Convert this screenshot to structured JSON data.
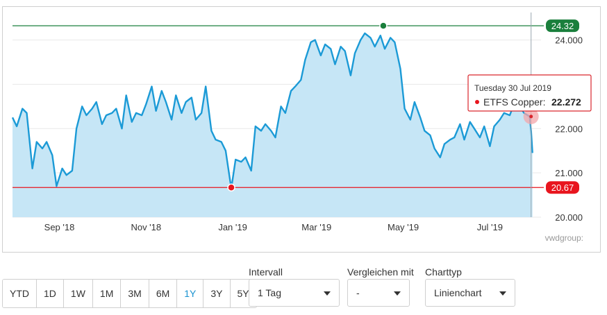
{
  "chart_data": {
    "type": "area",
    "series": [
      {
        "name": "ETFS Copper",
        "x": [
          "2018-07-30",
          "2018-08-02",
          "2018-08-06",
          "2018-08-09",
          "2018-08-13",
          "2018-08-16",
          "2018-08-20",
          "2018-08-23",
          "2018-08-27",
          "2018-08-30",
          "2018-09-03",
          "2018-09-06",
          "2018-09-10",
          "2018-09-13",
          "2018-09-17",
          "2018-09-20",
          "2018-09-24",
          "2018-09-27",
          "2018-10-01",
          "2018-10-04",
          "2018-10-08",
          "2018-10-11",
          "2018-10-15",
          "2018-10-18",
          "2018-10-22",
          "2018-10-25",
          "2018-10-29",
          "2018-11-01",
          "2018-11-05",
          "2018-11-08",
          "2018-11-12",
          "2018-11-15",
          "2018-11-19",
          "2018-11-22",
          "2018-11-26",
          "2018-11-29",
          "2018-12-03",
          "2018-12-06",
          "2018-12-10",
          "2018-12-13",
          "2018-12-17",
          "2018-12-20",
          "2018-12-24",
          "2018-12-27",
          "2018-12-31",
          "2019-01-03",
          "2019-01-07",
          "2019-01-10",
          "2019-01-14",
          "2019-01-17",
          "2019-01-21",
          "2019-01-24",
          "2019-01-28",
          "2019-01-31",
          "2019-02-04",
          "2019-02-07",
          "2019-02-11",
          "2019-02-14",
          "2019-02-18",
          "2019-02-21",
          "2019-02-25",
          "2019-02-28",
          "2019-03-04",
          "2019-03-07",
          "2019-03-11",
          "2019-03-14",
          "2019-03-18",
          "2019-03-21",
          "2019-03-25",
          "2019-03-28",
          "2019-04-01",
          "2019-04-04",
          "2019-04-08",
          "2019-04-11",
          "2019-04-15",
          "2019-04-18",
          "2019-04-22",
          "2019-04-25",
          "2019-04-29",
          "2019-05-02",
          "2019-05-06",
          "2019-05-09",
          "2019-05-13",
          "2019-05-16",
          "2019-05-20",
          "2019-05-23",
          "2019-05-27",
          "2019-05-30",
          "2019-06-03",
          "2019-06-06",
          "2019-06-10",
          "2019-06-13",
          "2019-06-17",
          "2019-06-20",
          "2019-06-24",
          "2019-06-27",
          "2019-07-01",
          "2019-07-04",
          "2019-07-08",
          "2019-07-11",
          "2019-07-15",
          "2019-07-18",
          "2019-07-22",
          "2019-07-25",
          "2019-07-29",
          "2019-07-30",
          "2019-07-31"
        ],
        "values": [
          22.25,
          22.05,
          22.45,
          22.35,
          21.1,
          21.7,
          21.55,
          21.7,
          21.4,
          20.7,
          21.1,
          20.95,
          21.05,
          22.0,
          22.5,
          22.3,
          22.45,
          22.6,
          22.1,
          22.3,
          22.35,
          22.45,
          22.0,
          22.75,
          22.15,
          22.35,
          22.3,
          22.55,
          22.95,
          22.4,
          22.85,
          22.6,
          22.2,
          22.75,
          22.35,
          22.6,
          22.7,
          22.2,
          22.35,
          22.95,
          21.95,
          21.75,
          21.7,
          21.5,
          20.65,
          21.3,
          21.25,
          21.35,
          21.05,
          22.05,
          21.95,
          22.1,
          21.95,
          21.8,
          22.5,
          22.35,
          22.85,
          22.95,
          23.1,
          23.55,
          23.95,
          24.0,
          23.65,
          23.9,
          23.8,
          23.45,
          23.85,
          23.75,
          23.2,
          23.7,
          24.0,
          24.15,
          24.05,
          23.85,
          24.1,
          23.8,
          24.05,
          23.95,
          23.35,
          22.45,
          22.2,
          22.6,
          22.25,
          21.95,
          21.85,
          21.55,
          21.35,
          21.65,
          21.75,
          21.8,
          22.1,
          21.75,
          22.15,
          22.0,
          21.8,
          22.05,
          21.6,
          22.05,
          22.2,
          22.35,
          22.3,
          22.55,
          22.5,
          22.35,
          22.272,
          21.95,
          21.45
        ]
      }
    ],
    "xlabel": "",
    "ylabel": "",
    "x_ticks": [
      {
        "date": "2018-09-01",
        "label": "Sep '18"
      },
      {
        "date": "2018-11-01",
        "label": "Nov '18"
      },
      {
        "date": "2019-01-01",
        "label": "Jan '19"
      },
      {
        "date": "2019-03-01",
        "label": "Mar '19"
      },
      {
        "date": "2019-05-01",
        "label": "May '19"
      },
      {
        "date": "2019-07-01",
        "label": "Jul '19"
      }
    ],
    "y_ticks": [
      {
        "value": 20,
        "label": "20.000"
      },
      {
        "value": 21,
        "label": "21.000"
      },
      {
        "value": 22,
        "label": "22.000"
      },
      {
        "value": 23,
        "label": "23.000"
      },
      {
        "value": 24,
        "label": "24.000"
      }
    ],
    "ylim": [
      20.0,
      24.62
    ],
    "xlim": [
      "2018-07-30",
      "2019-08-06"
    ],
    "max_line": {
      "value": 24.32,
      "label": "24.32",
      "date": "2019-04-17",
      "color": "#1a7f3c"
    },
    "min_line": {
      "value": 20.67,
      "label": "20.67",
      "date": "2018-12-31",
      "color": "#e8151e"
    },
    "grid": true,
    "line_color": "#1b9ad6",
    "fill_color": "#c6e6f6",
    "tooltip": {
      "date_text": "Tuesday 30 Jul 2019",
      "series_label": "ETFS Copper:",
      "value_text": "22.272",
      "date": "2019-07-30",
      "value": 22.272,
      "border_color": "#d9262c"
    },
    "credit": "vwdgroup:"
  },
  "controls": {
    "range_buttons": [
      {
        "label": "YTD",
        "active": false
      },
      {
        "label": "1D",
        "active": false
      },
      {
        "label": "1W",
        "active": false
      },
      {
        "label": "1M",
        "active": false
      },
      {
        "label": "3M",
        "active": false
      },
      {
        "label": "6M",
        "active": false
      },
      {
        "label": "1Y",
        "active": true
      },
      {
        "label": "3Y",
        "active": false
      },
      {
        "label": "5Y",
        "active": false
      }
    ],
    "interval_label": "Intervall",
    "interval_value": "1 Tag",
    "compare_label": "Vergleichen mit",
    "compare_value": "-",
    "charttype_label": "Charttyp",
    "charttype_value": "Linienchart"
  }
}
